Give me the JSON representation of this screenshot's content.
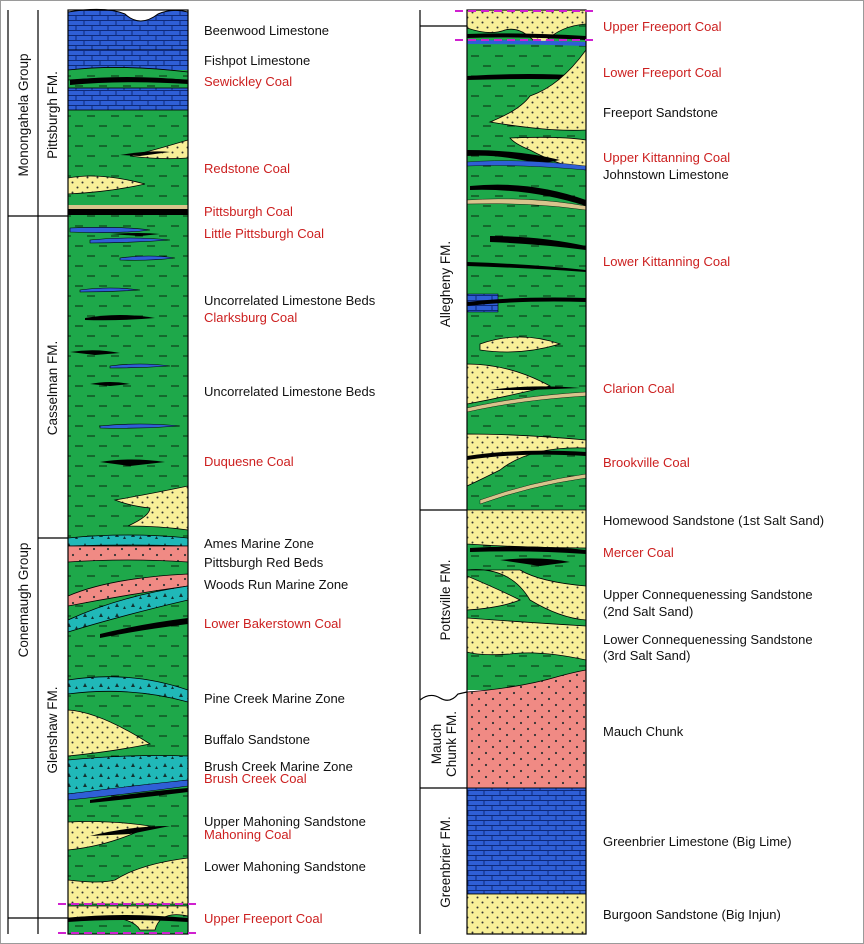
{
  "colors": {
    "shale": "#1ea84a",
    "limestone": "#2f5fd6",
    "sandstone": "#f8ef98",
    "coal": "#000000",
    "red_beds": "#f08a84",
    "marine": "#20b8b8",
    "clay": "#d8c48c",
    "marker": "#d020d0",
    "coal_label": "#cc1f1f",
    "text": "#111111"
  },
  "units": {
    "monongahela_group": "Monongahela Group",
    "pittsburgh_fm": "Pittsburgh FM.",
    "conemaugh_group": "Conemaugh Group",
    "casselman_fm": "Casselman FM.",
    "glenshaw_fm": "Glenshaw FM.",
    "allegheny_fm": "Allegheny FM.",
    "pottsville_fm": "Pottsville FM.",
    "mauch_chunk_fm_line1": "Mauch",
    "mauch_chunk_fm_line2": "Chunk FM.",
    "greenbrier_fm": "Greenbrier FM."
  },
  "left_labels": {
    "beenwood_limestone": "Beenwood Limestone",
    "fishpot_limestone": "Fishpot Limestone",
    "sewickley_coal": "Sewickley Coal",
    "redstone_coal": "Redstone Coal",
    "pittsburgh_coal": "Pittsburgh Coal",
    "little_pittsburgh_coal": "Little Pittsburgh Coal",
    "uncorrelated_limestone_1": "Uncorrelated Limestone Beds",
    "clarksburg_coal": "Clarksburg Coal",
    "uncorrelated_limestone_2": "Uncorrelated Limestone Beds",
    "duquesne_coal": "Duquesne Coal",
    "ames_marine_zone": "Ames Marine Zone",
    "pittsburgh_red_beds": "Pittsburgh Red Beds",
    "woods_run_marine_zone": "Woods Run Marine Zone",
    "lower_bakerstown_coal": "Lower Bakerstown Coal",
    "pine_creek_marine_zone": "Pine Creek Marine Zone",
    "buffalo_sandstone": "Buffalo Sandstone",
    "brush_creek_marine_zone": "Brush Creek Marine Zone",
    "brush_creek_coal": "Brush Creek Coal",
    "upper_mahoning_sandstone": "Upper Mahoning Sandstone",
    "mahoning_coal": "Mahoning Coal",
    "lower_mahoning_sandstone": "Lower Mahoning Sandstone",
    "upper_freeport_coal": "Upper Freeport Coal"
  },
  "right_labels": {
    "upper_freeport_coal": "Upper Freeport Coal",
    "lower_freeport_coal": "Lower Freeport Coal",
    "freeport_sandstone": "Freeport Sandstone",
    "upper_kittanning_coal": "Upper Kittanning Coal",
    "johnstown_limestone": "Johnstown Limestone",
    "lower_kittanning_coal": "Lower Kittanning Coal",
    "clarion_coal": "Clarion Coal",
    "brookville_coal": "Brookville Coal",
    "homewood_sandstone": "Homewood Sandstone (1st Salt Sand)",
    "mercer_coal": "Mercer Coal",
    "upper_connoquenessing_1": "Upper Connequenessing Sandstone",
    "upper_connoquenessing_2": "(2nd Salt Sand)",
    "lower_connoquenessing_1": "Lower Connequenessing Sandstone",
    "lower_connoquenessing_2": "(3rd Salt Sand)",
    "mauch_chunk": "Mauch Chunk",
    "greenbrier_limestone": "Greenbrier Limestone (Big Lime)",
    "burgoon_sandstone": "Burgoon Sandstone (Big Injun)"
  }
}
